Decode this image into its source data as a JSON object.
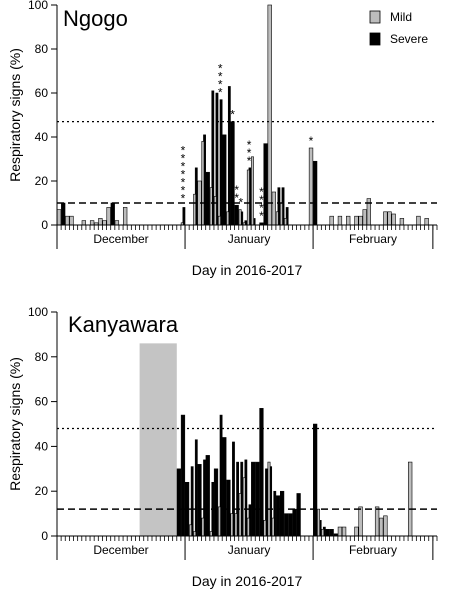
{
  "chart_data": [
    {
      "type": "bar",
      "title": "Ngogo",
      "xlabel": "Day in 2016-2017",
      "ylabel": "Respiratory signs (%)",
      "ylim": [
        0,
        100
      ],
      "yticks": [
        0,
        20,
        40,
        60,
        80,
        100
      ],
      "month_labels": [
        "December",
        "January",
        "February"
      ],
      "legend": {
        "placement": "top-right",
        "entries": [
          "Mild",
          "Severe"
        ]
      },
      "colors": {
        "Mild": "#bdbdbd",
        "Severe": "#000000"
      },
      "thresholds": [
        {
          "style": "dotted",
          "value": 47
        },
        {
          "style": "dashed",
          "value": 10
        }
      ],
      "days": {
        "start": 1,
        "end": 92,
        "month_boundaries": [
          0.5,
          31.5,
          62.5,
          91.5
        ]
      },
      "series": [
        {
          "name": "Mild",
          "points": [
            [
              1,
              7
            ],
            [
              3,
              4
            ],
            [
              4,
              4
            ],
            [
              7,
              2
            ],
            [
              9,
              2
            ],
            [
              10,
              1
            ],
            [
              11,
              3
            ],
            [
              12,
              2
            ],
            [
              13,
              8
            ],
            [
              15,
              2
            ],
            [
              17,
              8
            ],
            [
              31,
              1
            ],
            [
              32,
              0
            ],
            [
              34,
              14
            ],
            [
              35,
              20
            ],
            [
              36,
              38
            ],
            [
              38,
              17
            ],
            [
              39,
              13
            ],
            [
              40,
              4
            ],
            [
              42,
              6
            ],
            [
              45,
              7
            ],
            [
              46,
              1
            ],
            [
              47,
              25
            ],
            [
              48,
              31
            ],
            [
              52,
              100
            ],
            [
              53,
              15
            ],
            [
              54,
              6
            ],
            [
              55,
              10
            ],
            [
              56,
              3
            ],
            [
              62,
              35
            ],
            [
              67,
              4
            ],
            [
              69,
              4
            ],
            [
              71,
              4
            ],
            [
              73,
              4
            ],
            [
              74,
              4
            ],
            [
              75,
              7
            ],
            [
              76,
              12
            ],
            [
              80,
              6
            ],
            [
              81,
              6
            ],
            [
              82,
              5
            ],
            [
              84,
              3
            ],
            [
              88,
              4
            ],
            [
              90,
              3
            ]
          ]
        },
        {
          "name": "Severe",
          "points": [
            [
              2,
              10
            ],
            [
              14,
              10
            ],
            [
              31,
              8
            ],
            [
              34,
              26
            ],
            [
              36,
              41
            ],
            [
              37,
              24
            ],
            [
              38,
              61
            ],
            [
              39,
              60
            ],
            [
              40,
              57
            ],
            [
              41,
              41
            ],
            [
              42,
              63
            ],
            [
              43,
              47
            ],
            [
              44,
              9
            ],
            [
              45,
              6
            ],
            [
              46,
              2
            ],
            [
              47,
              26
            ],
            [
              48,
              3
            ],
            [
              50,
              1
            ],
            [
              51,
              37
            ],
            [
              54,
              17
            ],
            [
              55,
              17
            ],
            [
              56,
              8
            ],
            [
              63,
              29
            ]
          ]
        }
      ],
      "annotations": [
        {
          "text": "*",
          "day": 31,
          "rows": 7
        },
        {
          "text": "*",
          "day": 40,
          "rows": 4
        },
        {
          "text": "*",
          "day": 43,
          "rows": 1
        },
        {
          "text": "*",
          "day": 44,
          "rows": 2
        },
        {
          "text": "*",
          "day": 45,
          "rows": 1
        },
        {
          "text": "*",
          "day": 47,
          "rows": 3
        },
        {
          "text": "*",
          "day": 50,
          "rows": 4
        },
        {
          "text": "*",
          "day": 62,
          "rows": 1
        }
      ]
    },
    {
      "type": "bar",
      "title": "Kanyawara",
      "xlabel": "Day in 2016-2017",
      "ylabel": "Respiratory signs (%)",
      "ylim": [
        0,
        100
      ],
      "yticks": [
        0,
        20,
        40,
        60,
        80,
        100
      ],
      "month_labels": [
        "December",
        "January",
        "February"
      ],
      "colors": {
        "Mild": "#bdbdbd",
        "Severe": "#000000",
        "Gap": "#c4c4c4"
      },
      "thresholds": [
        {
          "style": "dotted",
          "value": 48
        },
        {
          "style": "dashed",
          "value": 12
        }
      ],
      "gap_period": [
        21,
        29
      ],
      "days": {
        "start": 1,
        "end": 92,
        "month_boundaries": [
          0.5,
          31.5,
          62.5,
          91.5
        ]
      },
      "series": [
        {
          "name": "Mild",
          "points": [
            [
              33,
              5
            ],
            [
              34,
              2
            ],
            [
              36,
              8
            ],
            [
              38,
              2
            ],
            [
              40,
              13
            ],
            [
              43,
              10
            ],
            [
              44,
              10
            ],
            [
              45,
              19
            ],
            [
              46,
              26
            ],
            [
              47,
              8
            ],
            [
              51,
              7
            ],
            [
              52,
              33
            ],
            [
              53,
              8
            ],
            [
              64,
              12
            ],
            [
              65,
              3
            ],
            [
              69,
              4
            ],
            [
              70,
              4
            ],
            [
              73,
              4
            ],
            [
              74,
              13
            ],
            [
              78,
              13
            ],
            [
              79,
              8
            ],
            [
              80,
              9
            ],
            [
              86,
              33
            ]
          ]
        },
        {
          "name": "Severe",
          "points": [
            [
              30,
              30
            ],
            [
              31,
              54
            ],
            [
              32,
              24
            ],
            [
              33,
              31
            ],
            [
              34,
              43
            ],
            [
              35,
              32
            ],
            [
              36,
              34
            ],
            [
              37,
              36
            ],
            [
              38,
              24
            ],
            [
              39,
              30
            ],
            [
              40,
              54
            ],
            [
              41,
              44
            ],
            [
              42,
              25
            ],
            [
              43,
              42
            ],
            [
              44,
              33
            ],
            [
              45,
              33
            ],
            [
              46,
              34
            ],
            [
              47,
              14
            ],
            [
              48,
              33
            ],
            [
              49,
              33
            ],
            [
              50,
              57
            ],
            [
              51,
              30
            ],
            [
              52,
              31
            ],
            [
              53,
              20
            ],
            [
              54,
              18
            ],
            [
              55,
              20
            ],
            [
              56,
              10
            ],
            [
              57,
              10
            ],
            [
              58,
              12
            ],
            [
              59,
              19
            ],
            [
              63,
              50
            ],
            [
              64,
              7
            ],
            [
              65,
              4
            ],
            [
              66,
              3
            ],
            [
              67,
              3
            ],
            [
              68,
              1
            ]
          ]
        }
      ]
    }
  ]
}
